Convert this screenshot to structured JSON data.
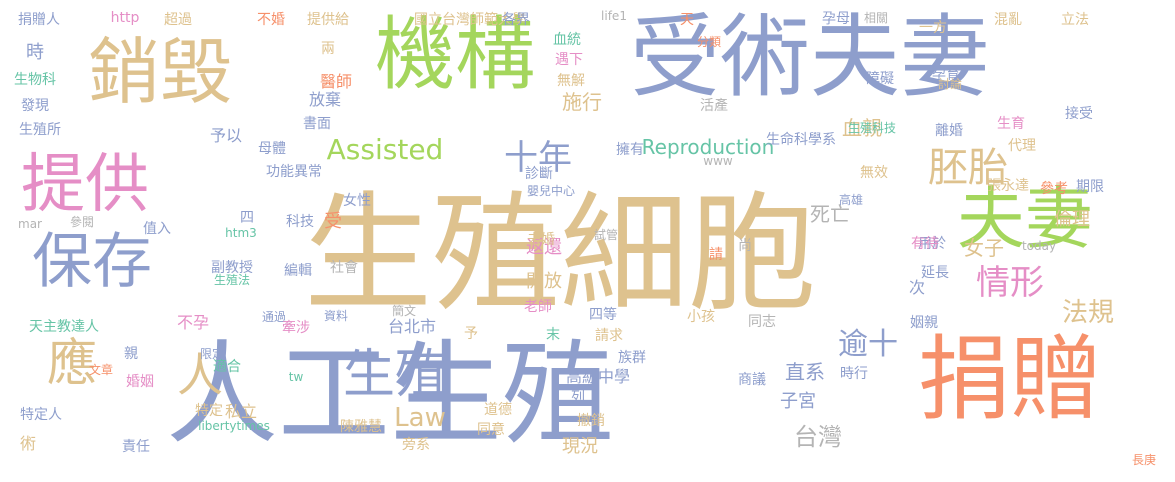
{
  "palette": {
    "tan": "#DEC28E",
    "blue": "#8E9ECC",
    "orange": "#F6906A",
    "green": "#A4D65C",
    "pink": "#E58EC6",
    "teal": "#66C4A6",
    "gold": "#F2CC46",
    "gray": "#B4B4B4"
  },
  "words": [
    {
      "text": "生殖細胞",
      "color": "tan",
      "size": 128
    },
    {
      "text": "人工生殖",
      "color": "blue",
      "size": 112
    },
    {
      "text": "捐贈",
      "color": "orange",
      "size": 92
    },
    {
      "text": "受術夫妻",
      "color": "blue",
      "size": 90
    },
    {
      "text": "機構",
      "color": "green",
      "size": 80
    },
    {
      "text": "銷毀",
      "color": "tan",
      "size": 72
    },
    {
      "text": "提供",
      "color": "pink",
      "size": 64
    },
    {
      "text": "保存",
      "color": "blue",
      "size": 60
    },
    {
      "text": "夫妻",
      "color": "green",
      "size": 68
    },
    {
      "text": "生殖",
      "color": "blue",
      "size": 52
    },
    {
      "text": "應",
      "color": "tan",
      "size": 50
    },
    {
      "text": "人",
      "color": "tan",
      "size": 46
    },
    {
      "text": "胚胎",
      "color": "tan",
      "size": 40
    },
    {
      "text": "十年",
      "color": "blue",
      "size": 34
    },
    {
      "text": "情形",
      "color": "pink",
      "size": 34
    },
    {
      "text": "逾十",
      "color": "blue",
      "size": 30
    },
    {
      "text": "Assisted",
      "color": "green",
      "size": 28
    },
    {
      "text": "Law",
      "color": "tan",
      "size": 26
    },
    {
      "text": "法規",
      "color": "tan",
      "size": 26
    },
    {
      "text": "台灣",
      "color": "gray",
      "size": 24
    },
    {
      "text": "Reproduction",
      "color": "teal",
      "size": 20
    },
    {
      "text": "女子",
      "color": "tan",
      "size": 20
    },
    {
      "text": "直系",
      "color": "blue",
      "size": 20
    },
    {
      "text": "施行",
      "color": "tan",
      "size": 20
    },
    {
      "text": "死亡",
      "color": "gray",
      "size": 20
    },
    {
      "text": "血親",
      "color": "tan",
      "size": 20
    },
    {
      "text": "倫理",
      "color": "tan",
      "size": 18
    },
    {
      "text": "開放",
      "color": "tan",
      "size": 18
    },
    {
      "text": "返還",
      "color": "pink",
      "size": 18
    },
    {
      "text": "子宮",
      "color": "blue",
      "size": 18
    },
    {
      "text": "現況",
      "color": "tan",
      "size": 18
    },
    {
      "text": "醫師",
      "color": "orange",
      "size": 16
    },
    {
      "text": "放棄",
      "color": "blue",
      "size": 16
    },
    {
      "text": "予以",
      "color": "blue",
      "size": 16
    },
    {
      "text": "不孕",
      "color": "pink",
      "size": 16
    },
    {
      "text": "高級中學",
      "color": "blue",
      "size": 16
    },
    {
      "text": "台北市",
      "color": "blue",
      "size": 16
    },
    {
      "text": "國立台灣師範大學",
      "color": "tan",
      "size": 14
    },
    {
      "text": "各界",
      "color": "blue",
      "size": 14
    },
    {
      "text": "捐贈人",
      "color": "blue",
      "size": 14
    },
    {
      "text": "http",
      "color": "pink",
      "size": 14
    },
    {
      "text": "超過",
      "color": "tan",
      "size": 14
    },
    {
      "text": "不婚",
      "color": "orange",
      "size": 14
    },
    {
      "text": "提供給",
      "color": "tan",
      "size": 14
    },
    {
      "text": "life1",
      "color": "gray",
      "size": 12
    },
    {
      "text": "天",
      "color": "orange",
      "size": 14
    },
    {
      "text": "孕母",
      "color": "blue",
      "size": 14
    },
    {
      "text": "相關",
      "color": "gray",
      "size": 12
    },
    {
      "text": "一方",
      "color": "tan",
      "size": 14
    },
    {
      "text": "混亂",
      "color": "tan",
      "size": 14
    },
    {
      "text": "立法",
      "color": "tan",
      "size": 14
    },
    {
      "text": "時",
      "color": "blue",
      "size": 18
    },
    {
      "text": "生物科",
      "color": "teal",
      "size": 14
    },
    {
      "text": "發現",
      "color": "blue",
      "size": 14
    },
    {
      "text": "生殖所",
      "color": "blue",
      "size": 14
    },
    {
      "text": "兩",
      "color": "tan",
      "size": 14
    },
    {
      "text": "血統",
      "color": "teal",
      "size": 14
    },
    {
      "text": "分類",
      "color": "orange",
      "size": 12
    },
    {
      "text": "遇下",
      "color": "pink",
      "size": 14
    },
    {
      "text": "無解",
      "color": "tan",
      "size": 14
    },
    {
      "text": "活產",
      "color": "gray",
      "size": 14
    },
    {
      "text": "障礙",
      "color": "blue",
      "size": 14
    },
    {
      "text": "討論",
      "color": "tan",
      "size": 12
    },
    {
      "text": "孕育",
      "color": "blue",
      "size": 14
    },
    {
      "text": "生育",
      "color": "pink",
      "size": 14
    },
    {
      "text": "代理",
      "color": "tan",
      "size": 14
    },
    {
      "text": "接受",
      "color": "blue",
      "size": 14
    },
    {
      "text": "書面",
      "color": "blue",
      "size": 14
    },
    {
      "text": "母體",
      "color": "blue",
      "size": 14
    },
    {
      "text": "擁有",
      "color": "blue",
      "size": 14
    },
    {
      "text": "生命科學系",
      "color": "blue",
      "size": 14
    },
    {
      "text": "生殖科技",
      "color": "teal",
      "size": 12
    },
    {
      "text": "離婚",
      "color": "blue",
      "size": 14
    },
    {
      "text": "功能異常",
      "color": "blue",
      "size": 14
    },
    {
      "text": "診斷",
      "color": "blue",
      "size": 14
    },
    {
      "text": "www",
      "color": "gray",
      "size": 12
    },
    {
      "text": "無效",
      "color": "tan",
      "size": 14
    },
    {
      "text": "期限",
      "color": "blue",
      "size": 14
    },
    {
      "text": "女性",
      "color": "blue",
      "size": 14
    },
    {
      "text": "嬰兒中心",
      "color": "blue",
      "size": 12
    },
    {
      "text": "高雄",
      "color": "blue",
      "size": 12
    },
    {
      "text": "張永達",
      "color": "tan",
      "size": 14
    },
    {
      "text": "參考",
      "color": "orange",
      "size": 14
    },
    {
      "text": "科技",
      "color": "blue",
      "size": 14
    },
    {
      "text": "受",
      "color": "orange",
      "size": 18
    },
    {
      "text": "四",
      "color": "blue",
      "size": 14
    },
    {
      "text": "參閱",
      "color": "gray",
      "size": 12
    },
    {
      "text": "值入",
      "color": "blue",
      "size": 14
    },
    {
      "text": "mar",
      "color": "gray",
      "size": 12
    },
    {
      "text": "htm3",
      "color": "teal",
      "size": 12
    },
    {
      "text": "未婚",
      "color": "tan",
      "size": 14
    },
    {
      "text": "試管",
      "color": "gray",
      "size": 12
    },
    {
      "text": "用於",
      "color": "blue",
      "size": 14
    },
    {
      "text": "today",
      "color": "gray",
      "size": 12
    },
    {
      "text": "有待",
      "color": "pink",
      "size": 14
    },
    {
      "text": "延長",
      "color": "blue",
      "size": 14
    },
    {
      "text": "副教授",
      "color": "blue",
      "size": 14
    },
    {
      "text": "生殖法",
      "color": "teal",
      "size": 12
    },
    {
      "text": "編輯",
      "color": "blue",
      "size": 14
    },
    {
      "text": "社會",
      "color": "gray",
      "size": 14
    },
    {
      "text": "老師",
      "color": "pink",
      "size": 14
    },
    {
      "text": "請",
      "color": "orange",
      "size": 14
    },
    {
      "text": "尚",
      "color": "gray",
      "size": 14
    },
    {
      "text": "次",
      "color": "blue",
      "size": 16
    },
    {
      "text": "天主教達人",
      "color": "teal",
      "size": 14
    },
    {
      "text": "通過",
      "color": "blue",
      "size": 12
    },
    {
      "text": "牽涉",
      "color": "pink",
      "size": 14
    },
    {
      "text": "資料",
      "color": "blue",
      "size": 12
    },
    {
      "text": "簡文",
      "color": "gray",
      "size": 12
    },
    {
      "text": "四等",
      "color": "blue",
      "size": 14
    },
    {
      "text": "請求",
      "color": "tan",
      "size": 14
    },
    {
      "text": "予",
      "color": "tan",
      "size": 14
    },
    {
      "text": "末",
      "color": "teal",
      "size": 14
    },
    {
      "text": "小孩",
      "color": "tan",
      "size": 14
    },
    {
      "text": "同志",
      "color": "gray",
      "size": 14
    },
    {
      "text": "姻親",
      "color": "blue",
      "size": 14
    },
    {
      "text": "親",
      "color": "blue",
      "size": 14
    },
    {
      "text": "婚姻",
      "color": "pink",
      "size": 14
    },
    {
      "text": "限定",
      "color": "blue",
      "size": 12
    },
    {
      "text": "適合",
      "color": "teal",
      "size": 14
    },
    {
      "text": "族群",
      "color": "blue",
      "size": 14
    },
    {
      "text": "商議",
      "color": "blue",
      "size": 14
    },
    {
      "text": "時行",
      "color": "blue",
      "size": 14
    },
    {
      "text": "tw",
      "color": "teal",
      "size": 12
    },
    {
      "text": "文章",
      "color": "orange",
      "size": 12
    },
    {
      "text": "特定人",
      "color": "blue",
      "size": 14
    },
    {
      "text": "特定",
      "color": "tan",
      "size": 14
    },
    {
      "text": "私立",
      "color": "tan",
      "size": 16
    },
    {
      "text": "列",
      "color": "blue",
      "size": 14
    },
    {
      "text": "道德",
      "color": "tan",
      "size": 14
    },
    {
      "text": "撤銷",
      "color": "tan",
      "size": 14
    },
    {
      "text": "陳雅慧",
      "color": "tan",
      "size": 14
    },
    {
      "text": "libertytimes",
      "color": "teal",
      "size": 12
    },
    {
      "text": "術",
      "color": "tan",
      "size": 16
    },
    {
      "text": "責任",
      "color": "blue",
      "size": 14
    },
    {
      "text": "旁系",
      "color": "tan",
      "size": 14
    },
    {
      "text": "同意",
      "color": "tan",
      "size": 14
    },
    {
      "text": "長庚",
      "color": "orange",
      "size": 12
    }
  ]
}
